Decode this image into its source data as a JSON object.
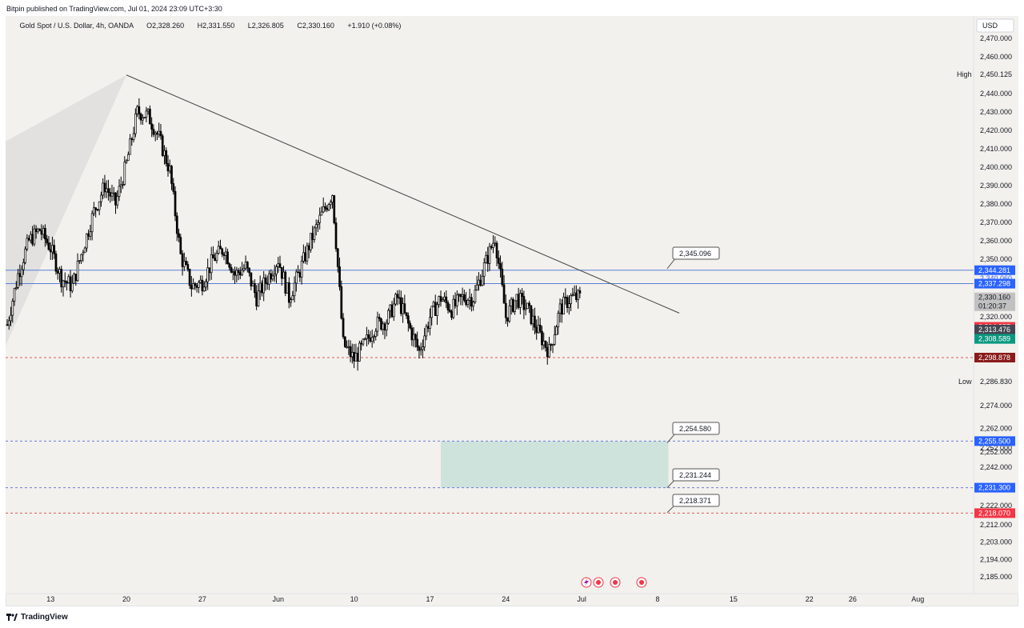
{
  "publisher": "Bitpin published on TradingView.com,  Jul 01, 2024 23:09 UTC+3:30",
  "footer_brand": "TradingView",
  "symbol": {
    "name": "Gold Spot / U.S. Dollar, 4h, OANDA",
    "open_label": "O",
    "open": "2,328.260",
    "high_label": "H",
    "high": "2,331.550",
    "low_label": "L",
    "low": "2,326.805",
    "close_label": "C",
    "close": "2,330.160",
    "change": "+1.910 (+0.08%)"
  },
  "colors": {
    "up": "#ffffff",
    "down": "#000000",
    "wick": "#000000",
    "blue_line": "#5b7fd6",
    "red_dash": "#e05a5a",
    "blue_dash": "#6a7ce0",
    "zone": "#cde3dc",
    "fan": "#dcdbdb",
    "trend": "#444444",
    "badge_blue": "#2962ff",
    "badge_red": "#f23645",
    "badge_dark_red": "#8b1a1a",
    "badge_teal": "#089981",
    "badge_gray": "#c1c1c1",
    "badge_dark": "#434651"
  },
  "chart_data": {
    "type": "candlestick",
    "title": "Gold Spot / U.S. Dollar, 4h, OANDA",
    "currency_label": "USD",
    "y_axis_ticks": [
      "2,470.000",
      "2,460.000",
      "2,440.000",
      "2,430.000",
      "2,420.000",
      "2,410.000",
      "2,400.000",
      "2,390.000",
      "2,380.000",
      "2,370.000",
      "2,360.000",
      "2,350.000",
      "2,320.000",
      "2,274.000",
      "2,262.000",
      "2,252.000",
      "2,242.000",
      "2,222.000",
      "2,212.000",
      "2,203.000",
      "2,194.000",
      "2,185.000"
    ],
    "x_axis_ticks": [
      "13",
      "20",
      "27",
      "Jun",
      "10",
      "17",
      "24",
      "Jul",
      "8",
      "15",
      "22",
      "26",
      "Aug"
    ],
    "high_marker": {
      "label": "High",
      "value": "2,450.125"
    },
    "low_marker": {
      "label": "Low",
      "value": "2,286.830"
    },
    "price_badges": [
      {
        "value": "2,344.281",
        "kind": "blue"
      },
      {
        "value": "2,340.060",
        "kind": "blue-partial"
      },
      {
        "value": "2,337.298",
        "kind": "blue"
      },
      {
        "value": "2,330.160",
        "kind": "gray"
      },
      {
        "value": "01:20:37",
        "kind": "gray-timer"
      },
      {
        "value": "2,314.857",
        "kind": "red"
      },
      {
        "value": "2,313.476",
        "kind": "dark"
      },
      {
        "value": "2,308.589",
        "kind": "teal"
      },
      {
        "value": "2,298.878",
        "kind": "dark-red"
      },
      {
        "value": "2,255.500",
        "kind": "blue"
      },
      {
        "value": "2,252.000",
        "kind": "tick-partial"
      },
      {
        "value": "2,231.300",
        "kind": "blue"
      },
      {
        "value": "2,218.070",
        "kind": "red"
      }
    ],
    "callouts": [
      "2,345.096",
      "2,254.580",
      "2,231.244",
      "2,218.371"
    ],
    "horizontal_levels": [
      {
        "price": 2344.281,
        "style": "solid-blue"
      },
      {
        "price": 2337.298,
        "style": "solid-blue"
      },
      {
        "price": 2298.878,
        "style": "dashed-red"
      },
      {
        "price": 2255.5,
        "style": "dashed-blue"
      },
      {
        "price": 2231.3,
        "style": "dashed-blue"
      },
      {
        "price": 2218.07,
        "style": "dashed-red"
      }
    ],
    "trendline": {
      "from": {
        "date": "2024-05-20",
        "price": 2450.1
      },
      "to": {
        "date": "2024-07-10",
        "price": 2322.0
      }
    },
    "zone": {
      "from_date": "2024-06-18",
      "to_date": "2024-07-09",
      "top": 2255.5,
      "bottom": 2231.3
    },
    "close_series": [
      [
        "2024-05-09",
        2316
      ],
      [
        "2024-05-10",
        2342
      ],
      [
        "2024-05-11",
        2360
      ],
      [
        "2024-05-12",
        2366
      ],
      [
        "2024-05-13",
        2356
      ],
      [
        "2024-05-14",
        2340
      ],
      [
        "2024-05-15",
        2336
      ],
      [
        "2024-05-16",
        2356
      ],
      [
        "2024-05-17",
        2376
      ],
      [
        "2024-05-18",
        2390
      ],
      [
        "2024-05-19",
        2380
      ],
      [
        "2024-05-20",
        2402
      ],
      [
        "2024-05-21",
        2430
      ],
      [
        "2024-05-22",
        2428
      ],
      [
        "2024-05-23",
        2416
      ],
      [
        "2024-05-24",
        2398
      ],
      [
        "2024-05-25",
        2352
      ],
      [
        "2024-05-26",
        2336
      ],
      [
        "2024-05-27",
        2338
      ],
      [
        "2024-05-28",
        2350
      ],
      [
        "2024-05-29",
        2356
      ],
      [
        "2024-05-30",
        2342
      ],
      [
        "2024-05-31",
        2346
      ],
      [
        "2024-06-01",
        2330
      ],
      [
        "2024-06-02",
        2340
      ],
      [
        "2024-06-03",
        2350
      ],
      [
        "2024-06-04",
        2330
      ],
      [
        "2024-06-05",
        2344
      ],
      [
        "2024-06-06",
        2360
      ],
      [
        "2024-06-07",
        2374
      ],
      [
        "2024-06-08",
        2386
      ],
      [
        "2024-06-09",
        2306
      ],
      [
        "2024-06-10",
        2298
      ],
      [
        "2024-06-11",
        2306
      ],
      [
        "2024-06-12",
        2316
      ],
      [
        "2024-06-13",
        2318
      ],
      [
        "2024-06-14",
        2330
      ],
      [
        "2024-06-15",
        2316
      ],
      [
        "2024-06-16",
        2302
      ],
      [
        "2024-06-17",
        2320
      ],
      [
        "2024-06-18",
        2330
      ],
      [
        "2024-06-19",
        2324
      ],
      [
        "2024-06-20",
        2330
      ],
      [
        "2024-06-21",
        2330
      ],
      [
        "2024-06-22",
        2346
      ],
      [
        "2024-06-23",
        2362
      ],
      [
        "2024-06-24",
        2320
      ],
      [
        "2024-06-25",
        2330
      ],
      [
        "2024-06-26",
        2324
      ],
      [
        "2024-06-27",
        2312
      ],
      [
        "2024-06-28",
        2302
      ],
      [
        "2024-06-29",
        2324
      ],
      [
        "2024-06-30",
        2330
      ],
      [
        "2024-07-01",
        2330
      ]
    ]
  }
}
